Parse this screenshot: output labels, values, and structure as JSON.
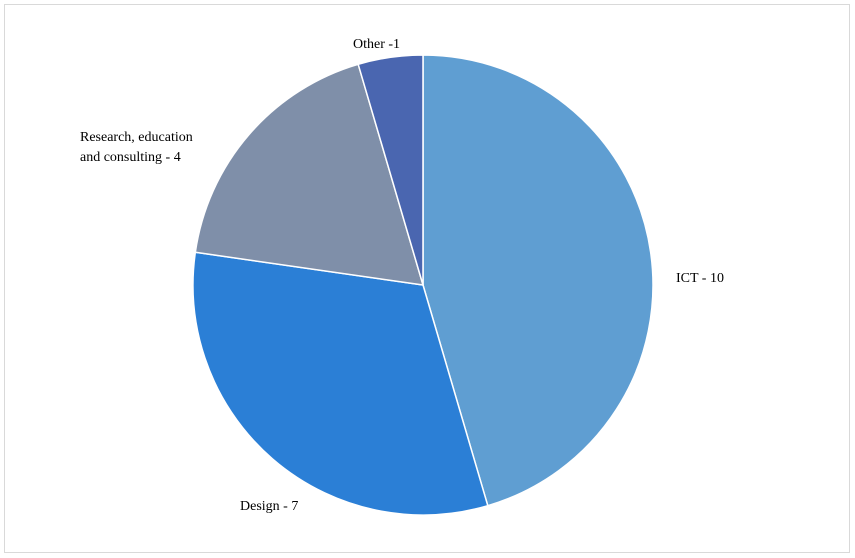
{
  "chart_data": {
    "type": "pie",
    "title": "",
    "categories": [
      "ICT",
      "Design",
      "Research, education and consulting",
      "Other"
    ],
    "values": [
      10,
      7,
      4,
      1
    ],
    "slices": [
      {
        "label": "ICT",
        "value": 10,
        "color": "#5f9ed2",
        "label_lines": [
          "ICT - 10"
        ]
      },
      {
        "label": "Design",
        "value": 7,
        "color": "#2b7fd6",
        "label_lines": [
          "Design - 7"
        ]
      },
      {
        "label": "Research, education and consulting",
        "value": 4,
        "color": "#7f8fa9",
        "label_lines": [
          "Research, education",
          "and consulting - 4"
        ]
      },
      {
        "label": "Other",
        "value": 1,
        "color": "#4a66b0",
        "label_lines": [
          "Other -1"
        ]
      }
    ],
    "start_angle_deg": 0,
    "direction": "clockwise",
    "legend": "none"
  }
}
